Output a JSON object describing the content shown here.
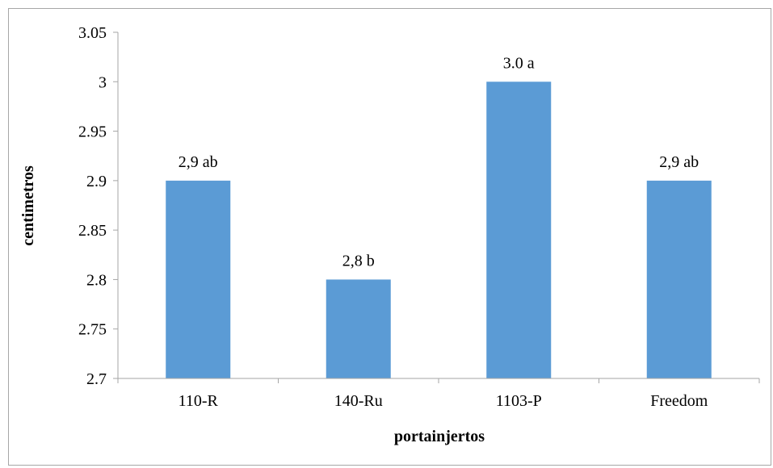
{
  "chart_data": {
    "type": "bar",
    "title": "",
    "xlabel": "portainjertos",
    "ylabel": "centimetros",
    "categories": [
      "110-R",
      "140-Ru",
      "1103-P",
      "Freedom"
    ],
    "values": [
      2.9,
      2.8,
      3.0,
      2.9
    ],
    "data_labels": [
      "2,9 ab",
      "2,8 b",
      "3.0 a",
      "2,9 ab"
    ],
    "ylim": [
      2.7,
      3.05
    ],
    "yticks": [
      2.7,
      2.75,
      2.8,
      2.85,
      2.9,
      2.95,
      3,
      3.05
    ],
    "ytick_labels": [
      "2.7",
      "2.75",
      "2.8",
      "2.85",
      "2.9",
      "2.95",
      "3",
      "3.05"
    ],
    "grid": false,
    "legend": "none",
    "bar_color": "#5b9bd5",
    "axis_color": "#a6a6a6"
  }
}
